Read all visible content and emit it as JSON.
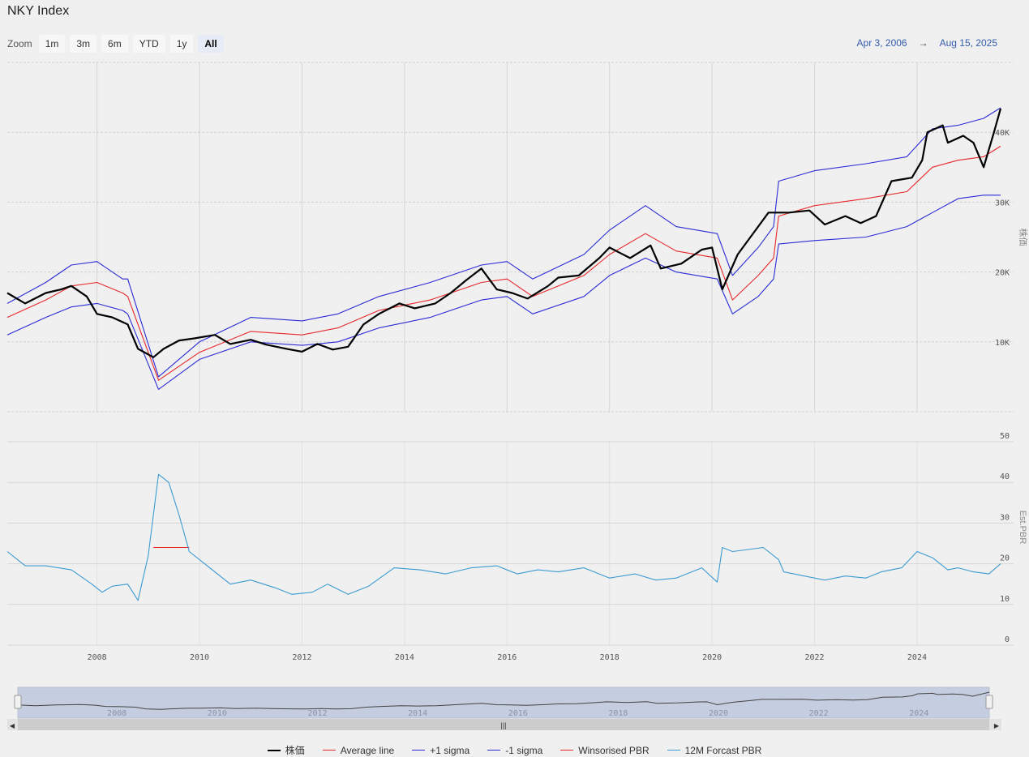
{
  "header": {
    "title": "NKY Index",
    "zoom_label": "Zoom",
    "zoom_buttons": [
      "1m",
      "3m",
      "6m",
      "YTD",
      "1y",
      "All"
    ],
    "active_zoom": "All",
    "range_from": "Apr 3, 2006",
    "range_arrow": "→",
    "range_to": "Aug 15, 2025"
  },
  "colors": {
    "price": "#000000",
    "average": "#e8272a",
    "plus_sigma": "#2b2bd6",
    "minus_sigma": "#2b2bd6",
    "winsorised": "#e8272a",
    "forecast": "#3b9bd1"
  },
  "legend": [
    {
      "label": "株価",
      "color": "#000000"
    },
    {
      "label": "Average line",
      "color": "#e8272a"
    },
    {
      "label": "+1 sigma",
      "color": "#2b2bd6"
    },
    {
      "label": "-1 sigma",
      "color": "#2b2bd6"
    },
    {
      "label": "Winsorised PBR",
      "color": "#e8272a"
    },
    {
      "label": "12M Forcast PBR",
      "color": "#3b9bd1"
    }
  ],
  "chart_data": [
    {
      "type": "line",
      "ylabel": "株価",
      "y_ticks": [
        "10K",
        "20K",
        "30K",
        "40K"
      ],
      "ylim": [
        0,
        50000
      ],
      "grid": true,
      "series": [
        {
          "name": "株価",
          "x": [
            2006.25,
            2006.6,
            2007.0,
            2007.3,
            2007.5,
            2007.8,
            2008.0,
            2008.3,
            2008.6,
            2008.8,
            2009.1,
            2009.3,
            2009.6,
            2009.9,
            2010.3,
            2010.6,
            2011.0,
            2011.3,
            2011.7,
            2012.0,
            2012.3,
            2012.6,
            2012.9,
            2013.2,
            2013.5,
            2013.9,
            2014.2,
            2014.6,
            2014.9,
            2015.2,
            2015.5,
            2015.8,
            2016.1,
            2016.4,
            2016.8,
            2017.0,
            2017.4,
            2017.8,
            2018.0,
            2018.4,
            2018.8,
            2019.0,
            2019.4,
            2019.8,
            2020.0,
            2020.2,
            2020.5,
            2020.9,
            2021.1,
            2021.5,
            2021.9,
            2022.2,
            2022.6,
            2022.9,
            2023.2,
            2023.5,
            2023.9,
            2024.1,
            2024.2,
            2024.5,
            2024.6,
            2024.9,
            2025.1,
            2025.3,
            2025.5,
            2025.63
          ],
          "y": [
            17000,
            15500,
            17000,
            17500,
            18000,
            16500,
            14000,
            13500,
            12500,
            9000,
            7800,
            9000,
            10200,
            10500,
            11000,
            9700,
            10300,
            9600,
            9000,
            8600,
            9700,
            8900,
            9300,
            12500,
            14000,
            15500,
            14800,
            15500,
            17000,
            18800,
            20500,
            17500,
            17000,
            16200,
            18000,
            19200,
            19500,
            22000,
            23500,
            22000,
            23800,
            20500,
            21200,
            23200,
            23500,
            17500,
            22500,
            26500,
            28500,
            28500,
            28800,
            26800,
            28000,
            27000,
            28000,
            33000,
            33500,
            36000,
            40000,
            41000,
            38500,
            39500,
            38500,
            35000,
            40000,
            43400
          ]
        },
        {
          "name": "Average line",
          "x": [
            2006.25,
            2007.0,
            2007.5,
            2008.0,
            2008.5,
            2008.6,
            2009.2,
            2010.0,
            2011.0,
            2012.0,
            2012.7,
            2013.5,
            2014.5,
            2015.5,
            2016.0,
            2016.5,
            2017.5,
            2018.0,
            2018.7,
            2019.3,
            2020.1,
            2020.4,
            2020.9,
            2021.2,
            2021.3,
            2022.0,
            2023.0,
            2023.8,
            2024.3,
            2024.8,
            2025.3,
            2025.63
          ],
          "y": [
            13500,
            16000,
            18000,
            18500,
            17000,
            16500,
            4500,
            8500,
            11500,
            11000,
            12000,
            14500,
            16000,
            18500,
            19000,
            16500,
            19500,
            22500,
            25500,
            23000,
            22000,
            16000,
            19500,
            22000,
            28000,
            29500,
            30500,
            31500,
            35000,
            36000,
            36500,
            38000
          ]
        },
        {
          "name": "+1 sigma",
          "x": [
            2006.25,
            2007.0,
            2007.5,
            2008.0,
            2008.5,
            2008.6,
            2009.2,
            2010.0,
            2011.0,
            2012.0,
            2012.7,
            2013.5,
            2014.5,
            2015.5,
            2016.0,
            2016.5,
            2017.5,
            2018.0,
            2018.7,
            2019.3,
            2020.1,
            2020.4,
            2020.9,
            2021.2,
            2021.3,
            2022.0,
            2023.0,
            2023.8,
            2024.3,
            2024.8,
            2025.3,
            2025.63
          ],
          "y": [
            15500,
            18500,
            21000,
            21500,
            19000,
            19000,
            5000,
            10000,
            13500,
            13000,
            14000,
            16500,
            18500,
            21000,
            21500,
            19000,
            22500,
            26000,
            29500,
            26500,
            25500,
            19500,
            23500,
            26500,
            33000,
            34500,
            35500,
            36500,
            40500,
            41000,
            42000,
            43500
          ]
        },
        {
          "name": "-1 sigma",
          "x": [
            2006.25,
            2007.0,
            2007.5,
            2008.0,
            2008.5,
            2008.6,
            2009.2,
            2010.0,
            2011.0,
            2012.0,
            2012.7,
            2013.5,
            2014.5,
            2015.5,
            2016.0,
            2016.5,
            2017.5,
            2018.0,
            2018.7,
            2019.3,
            2020.1,
            2020.4,
            2020.9,
            2021.2,
            2021.3,
            2022.0,
            2023.0,
            2023.8,
            2024.3,
            2024.8,
            2025.3,
            2025.63
          ],
          "y": [
            11000,
            13500,
            15000,
            15500,
            14500,
            14000,
            3200,
            7500,
            10000,
            9500,
            10000,
            12000,
            13500,
            16000,
            16500,
            14000,
            16500,
            19500,
            22000,
            20000,
            19000,
            14000,
            16500,
            19000,
            24000,
            24500,
            25000,
            26500,
            28500,
            30500,
            31000,
            31000
          ]
        }
      ]
    },
    {
      "type": "line",
      "ylabel": "Est.PBR",
      "y_ticks": [
        "0",
        "10",
        "20",
        "30",
        "40",
        "50"
      ],
      "ylim": [
        0,
        50
      ],
      "x_ticks": [
        "2008",
        "2010",
        "2012",
        "2014",
        "2016",
        "2018",
        "2020",
        "2022",
        "2024"
      ],
      "grid": true,
      "series": [
        {
          "name": "Winsorised PBR",
          "x": [
            2009.1,
            2009.8
          ],
          "y": [
            24,
            24
          ]
        },
        {
          "name": "12M Forcast PBR",
          "x": [
            2006.25,
            2006.6,
            2007.0,
            2007.5,
            2007.9,
            2008.1,
            2008.3,
            2008.6,
            2008.8,
            2009.0,
            2009.2,
            2009.4,
            2009.6,
            2009.8,
            2010.1,
            2010.6,
            2011.0,
            2011.5,
            2011.8,
            2012.2,
            2012.5,
            2012.9,
            2013.3,
            2013.8,
            2014.3,
            2014.8,
            2015.3,
            2015.8,
            2016.2,
            2016.6,
            2017.0,
            2017.5,
            2018.0,
            2018.5,
            2018.9,
            2019.3,
            2019.8,
            2020.1,
            2020.2,
            2020.4,
            2020.7,
            2021.0,
            2021.3,
            2021.4,
            2021.8,
            2022.2,
            2022.6,
            2023.0,
            2023.3,
            2023.7,
            2024.0,
            2024.3,
            2024.6,
            2024.8,
            2025.1,
            2025.4,
            2025.63
          ],
          "y": [
            23,
            19.5,
            19.5,
            18.5,
            15,
            13,
            14.5,
            15,
            11,
            22,
            42,
            40,
            32,
            23,
            20,
            15,
            16,
            14,
            12.5,
            13,
            15,
            12.5,
            14.5,
            19,
            18.5,
            17.5,
            19,
            19.5,
            17.5,
            18.5,
            18,
            19,
            16.5,
            17.5,
            16,
            16.5,
            19,
            15.5,
            24,
            23,
            23.5,
            24,
            21,
            18,
            17,
            16,
            17,
            16.5,
            18,
            19,
            23,
            21.5,
            18.5,
            19,
            18,
            17.5,
            20
          ]
        }
      ]
    }
  ]
}
